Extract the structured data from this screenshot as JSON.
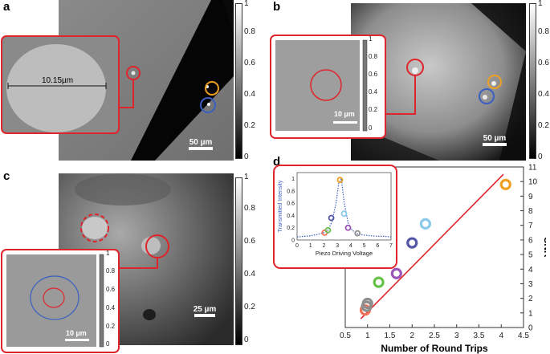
{
  "panels": {
    "a": {
      "label": "a",
      "scalebar": "50 µm",
      "inset_measure": "10.15µm"
    },
    "b": {
      "label": "b",
      "scalebar": "50 µm",
      "inset_scalebar": "10 µm"
    },
    "c": {
      "label": "c",
      "scalebar": "25 µm",
      "inset_scalebar": "10 µm"
    },
    "d": {
      "label": "d"
    }
  },
  "colorbar_ticks": [
    "1",
    "0.8",
    "0.6",
    "0.4",
    "0.2",
    "0"
  ],
  "colors": {
    "red": "#e0242b",
    "orange": "#f0a020",
    "blue": "#3a5fc0"
  },
  "chart_data": [
    {
      "type": "scatter",
      "title": "",
      "xlabel": "Number of Round Trips",
      "ylabel": "SNR",
      "xlim": [
        0.5,
        4.5
      ],
      "ylim": [
        0,
        11
      ],
      "x_ticks": [
        "0.5",
        "1",
        "1.5",
        "2",
        "2.5",
        "3",
        "3.5",
        "4",
        "4.5"
      ],
      "y_ticks": [
        "0",
        "1",
        "2",
        "3",
        "4",
        "5",
        "6",
        "7",
        "8",
        "9",
        "10",
        "11"
      ],
      "points": [
        {
          "x": 0.95,
          "y": 1.2,
          "color": "#f4715a"
        },
        {
          "x": 0.98,
          "y": 1.45,
          "color": "#8e8e8e"
        },
        {
          "x": 1.0,
          "y": 1.65,
          "color": "#8e8e8e"
        },
        {
          "x": 1.25,
          "y": 3.1,
          "color": "#66c24a"
        },
        {
          "x": 1.65,
          "y": 3.7,
          "color": "#9b54b8"
        },
        {
          "x": 2.0,
          "y": 5.8,
          "color": "#5557a6"
        },
        {
          "x": 2.3,
          "y": 7.1,
          "color": "#8ac9ea"
        },
        {
          "x": 4.1,
          "y": 9.8,
          "color": "#f0a020"
        }
      ],
      "fit_line": {
        "x": [
          0.85,
          4.05
        ],
        "y": [
          0.6,
          10.5
        ],
        "color": "#e0242b"
      }
    },
    {
      "type": "line",
      "title": "",
      "xlabel": "Piezo Driving Voltage",
      "ylabel": "Transmitted Intensity",
      "xlim": [
        0,
        7
      ],
      "ylim": [
        0,
        1.1
      ],
      "x_ticks": [
        "0",
        "1",
        "2",
        "3",
        "4",
        "5",
        "6",
        "7"
      ],
      "y_ticks": [
        "0",
        "0.2",
        "0.4",
        "0.6",
        "0.8",
        "1"
      ],
      "curve": {
        "x": [
          0,
          0.5,
          1,
          1.5,
          2,
          2.3,
          2.6,
          2.9,
          3.1,
          3.3,
          3.5,
          3.8,
          4.1,
          4.5,
          5,
          5.5,
          6,
          6.5,
          7
        ],
        "y": [
          0.05,
          0.06,
          0.07,
          0.09,
          0.12,
          0.16,
          0.3,
          0.6,
          0.92,
          1.0,
          0.62,
          0.28,
          0.16,
          0.1,
          0.08,
          0.07,
          0.06,
          0.06,
          0.05
        ]
      },
      "points": [
        {
          "x": 2.05,
          "y": 0.12,
          "color": "#f4715a"
        },
        {
          "x": 2.3,
          "y": 0.16,
          "color": "#66c24a"
        },
        {
          "x": 2.55,
          "y": 0.36,
          "color": "#5557a6"
        },
        {
          "x": 3.2,
          "y": 0.98,
          "color": "#f0a020"
        },
        {
          "x": 3.5,
          "y": 0.43,
          "color": "#8ac9ea"
        },
        {
          "x": 3.8,
          "y": 0.2,
          "color": "#9b54b8"
        },
        {
          "x": 4.5,
          "y": 0.11,
          "color": "#8e8e8e"
        }
      ]
    }
  ]
}
